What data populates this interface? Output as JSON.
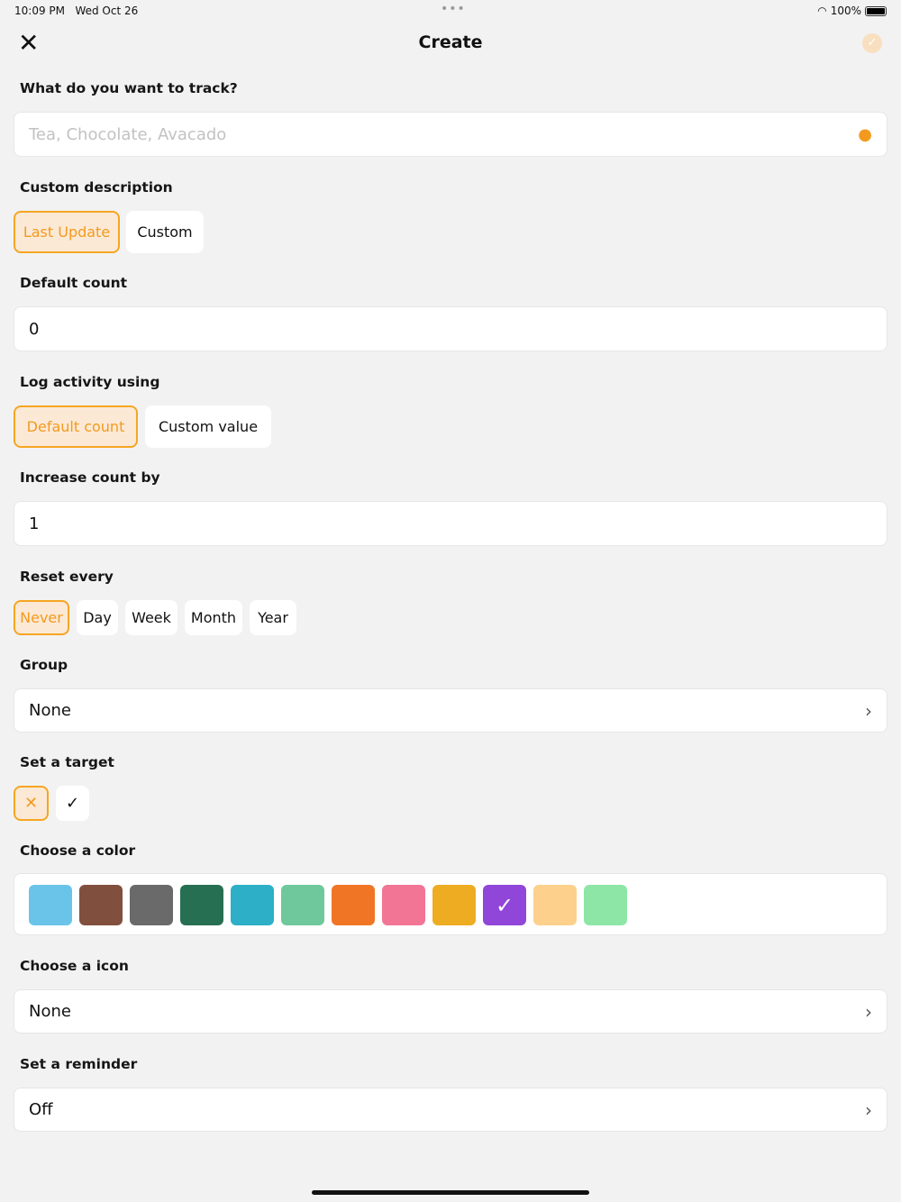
{
  "status": {
    "time": "10:09 PM",
    "date": "Wed Oct 26",
    "battery": "100%"
  },
  "header": {
    "title": "Create"
  },
  "track": {
    "label": "What do you want to track?",
    "placeholder": "Tea, Chocolate, Avacado"
  },
  "description": {
    "label": "Custom description",
    "options": [
      "Last Update",
      "Custom"
    ],
    "selected": 0
  },
  "default_count": {
    "label": "Default count",
    "value": "0"
  },
  "log_activity": {
    "label": "Log activity using",
    "options": [
      "Default count",
      "Custom value"
    ],
    "selected": 0
  },
  "increase": {
    "label": "Increase count by",
    "value": "1"
  },
  "reset": {
    "label": "Reset every",
    "options": [
      "Never",
      "Day",
      "Week",
      "Month",
      "Year"
    ],
    "selected": 0
  },
  "group": {
    "label": "Group",
    "value": "None"
  },
  "target": {
    "label": "Set a target",
    "options": [
      "✕",
      "✓"
    ],
    "selected": 0
  },
  "color": {
    "label": "Choose a color",
    "colors": [
      "#6ac4ea",
      "#814f3d",
      "#6a6a6a",
      "#276f52",
      "#2cafc7",
      "#6fc89b",
      "#f07625",
      "#f27595",
      "#edac21",
      "#9046d9",
      "#fdd08c",
      "#8de6a6"
    ],
    "selected": 9
  },
  "icon": {
    "label": "Choose a icon",
    "value": "None"
  },
  "reminder": {
    "label": "Set a reminder",
    "value": "Off"
  }
}
